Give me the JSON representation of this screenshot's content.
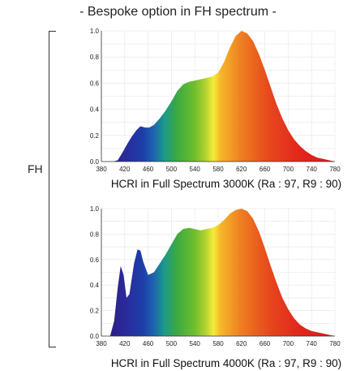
{
  "page_title": "- Bespoke option in FH spectrum -",
  "side_label": "FH",
  "chart_data": [
    {
      "type": "area",
      "title": "HCRI in Full Spectrum 3000K (Ra : 97, R9 : 90)",
      "xlabel": "",
      "ylabel": "",
      "xlim": [
        380,
        780
      ],
      "ylim": [
        0,
        1.0
      ],
      "x_ticks": [
        380,
        420,
        460,
        500,
        540,
        580,
        620,
        660,
        700,
        740,
        780
      ],
      "y_ticks": [
        "0.0",
        "0.2",
        "0.4",
        "0.6",
        "0.8",
        "1.0"
      ],
      "grid": true,
      "fill": "wavelength-rainbow",
      "x": [
        380,
        390,
        400,
        408,
        415,
        425,
        432,
        440,
        447,
        455,
        462,
        470,
        480,
        490,
        500,
        510,
        520,
        530,
        540,
        550,
        560,
        570,
        580,
        590,
        600,
        610,
        620,
        630,
        640,
        650,
        660,
        670,
        680,
        690,
        700,
        710,
        720,
        730,
        740,
        750,
        760,
        770,
        780
      ],
      "y": [
        0,
        0,
        0,
        0.01,
        0.06,
        0.14,
        0.19,
        0.24,
        0.27,
        0.26,
        0.26,
        0.28,
        0.33,
        0.39,
        0.46,
        0.54,
        0.59,
        0.61,
        0.62,
        0.63,
        0.64,
        0.65,
        0.68,
        0.76,
        0.87,
        0.96,
        1.0,
        0.98,
        0.92,
        0.82,
        0.7,
        0.57,
        0.44,
        0.33,
        0.24,
        0.17,
        0.12,
        0.08,
        0.05,
        0.03,
        0.02,
        0.01,
        0.0
      ]
    },
    {
      "type": "area",
      "title": "HCRI in Full Spectrum 4000K (Ra : 97, R9 : 90)",
      "xlabel": "",
      "ylabel": "",
      "xlim": [
        380,
        780
      ],
      "ylim": [
        0,
        1.0
      ],
      "x_ticks": [
        380,
        420,
        460,
        500,
        540,
        580,
        620,
        660,
        700,
        740,
        780
      ],
      "y_ticks": [
        "0.0",
        "0.2",
        "0.4",
        "0.6",
        "0.8",
        "1.0"
      ],
      "grid": true,
      "fill": "wavelength-rainbow",
      "x": [
        380,
        395,
        402,
        408,
        413,
        418,
        423,
        428,
        436,
        442,
        447,
        452,
        460,
        470,
        480,
        490,
        500,
        510,
        520,
        530,
        540,
        550,
        560,
        570,
        580,
        590,
        600,
        610,
        620,
        630,
        640,
        650,
        660,
        670,
        680,
        690,
        700,
        710,
        720,
        730,
        740,
        760,
        780
      ],
      "y": [
        0,
        0,
        0.12,
        0.38,
        0.55,
        0.48,
        0.3,
        0.33,
        0.57,
        0.68,
        0.67,
        0.58,
        0.48,
        0.5,
        0.57,
        0.64,
        0.72,
        0.8,
        0.84,
        0.85,
        0.84,
        0.83,
        0.84,
        0.85,
        0.87,
        0.91,
        0.96,
        0.99,
        1.0,
        0.98,
        0.92,
        0.82,
        0.69,
        0.55,
        0.42,
        0.3,
        0.21,
        0.14,
        0.09,
        0.06,
        0.04,
        0.02,
        0.0
      ]
    }
  ]
}
